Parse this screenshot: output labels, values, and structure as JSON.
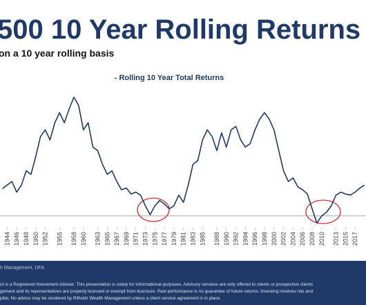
{
  "chart_data": {
    "type": "line",
    "title": "500 10 Year Rolling Returns",
    "subtitle": "on a 10 year rolling basis",
    "source": "h Management, DFA",
    "disclaimer": [
      "nt is a Registered Investment Adviser. This presentation is solely for informational purposes. Advisory services are only offered to clients or prospective clients",
      "gement and its representatives are properly licensed or exempt from licensure. Past performance is no guarantee of future returns. Investing involves risk and",
      "pital. No advice may be rendered by Ritholtz Wealth Management unless a client service agreement is in place."
    ],
    "x": [
      1943,
      1944,
      1945,
      1946,
      1947,
      1948,
      1949,
      1950,
      1951,
      1952,
      1953,
      1954,
      1955,
      1956,
      1957,
      1958,
      1959,
      1960,
      1961,
      1962,
      1963,
      1964,
      1965,
      1966,
      1967,
      1968,
      1969,
      1970,
      1971,
      1972,
      1973,
      1974,
      1975,
      1976,
      1977,
      1978,
      1979,
      1980,
      1981,
      1982,
      1983,
      1984,
      1985,
      1986,
      1987,
      1988,
      1989,
      1990,
      1991,
      1992,
      1993,
      1994,
      1995,
      1996,
      1997,
      1998,
      1999,
      2000,
      2001,
      2002,
      2003,
      2004,
      2005,
      2006,
      2007,
      2008,
      2009,
      2010,
      2011,
      2012,
      2013,
      2014,
      2015,
      2016,
      2017,
      2018,
      2019
    ],
    "series": [
      {
        "name": "- Rolling 10 Year Total Returns",
        "color": "#1f3a68",
        "values": [
          4.6,
          5.2,
          5.8,
          4,
          5.2,
          7.6,
          7,
          10,
          13.4,
          14.5,
          12.8,
          15.7,
          17.4,
          15.7,
          18,
          20,
          18.6,
          14.5,
          15.7,
          11.6,
          11,
          8.7,
          7,
          7.6,
          5.8,
          4.4,
          4.7,
          3.7,
          4,
          3.5,
          1.7,
          0.2,
          1.7,
          2.6,
          2,
          1.2,
          1.7,
          3.5,
          2.3,
          5.2,
          8.7,
          9.3,
          12.8,
          14.5,
          13.4,
          11,
          14,
          11.6,
          14.5,
          15.1,
          12.8,
          11.6,
          12.2,
          14.5,
          16.3,
          17.4,
          16.3,
          14.5,
          11,
          7.6,
          5.8,
          6.4,
          4.9,
          4.4,
          3.7,
          1.2,
          -1.2,
          0,
          0.6,
          1.7,
          3.5,
          4,
          3.7,
          3.5,
          4,
          4.7,
          5.2
        ]
      }
    ],
    "xlim": [
      1942.5,
      2019.3
    ],
    "ylim": [
      -3.5,
      21.5
    ],
    "xticks": [
      1944,
      1946,
      1948,
      1950,
      1952,
      1955,
      1958,
      1960,
      1963,
      1965,
      1967,
      1969,
      1971,
      1973,
      1975,
      1977,
      1979,
      1981,
      1983,
      1985,
      1988,
      1990,
      1992,
      1994,
      1996,
      1998,
      2000,
      2002,
      2004,
      2006,
      2008,
      2010,
      2013,
      2015,
      2017
    ],
    "hline": 0
  }
}
